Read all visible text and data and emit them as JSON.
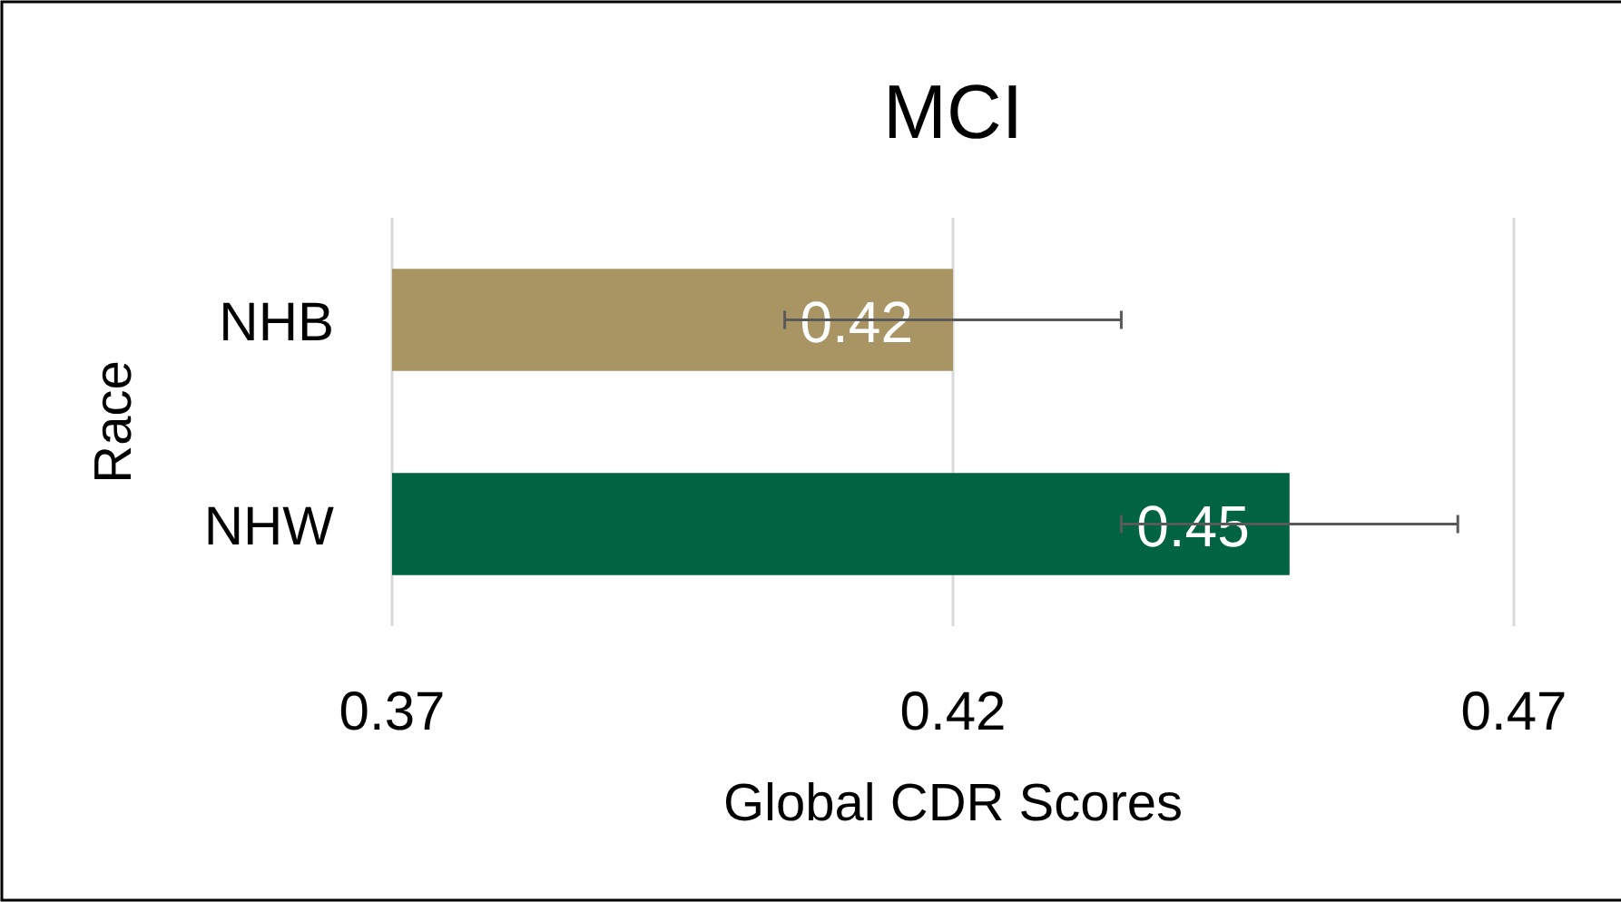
{
  "chart_data": {
    "type": "bar",
    "orientation": "horizontal",
    "title": "MCI",
    "xlabel": "Global CDR Scores",
    "ylabel": "Race",
    "categories": [
      "NHB",
      "NHW"
    ],
    "values": [
      0.42,
      0.45
    ],
    "colors": [
      "#a89563",
      "#006341"
    ],
    "errors": [
      0.015,
      0.015
    ],
    "xlim": [
      0.37,
      0.47
    ],
    "xticks": [
      0.37,
      0.42,
      0.47
    ],
    "grid": "x",
    "data_labels": true
  }
}
